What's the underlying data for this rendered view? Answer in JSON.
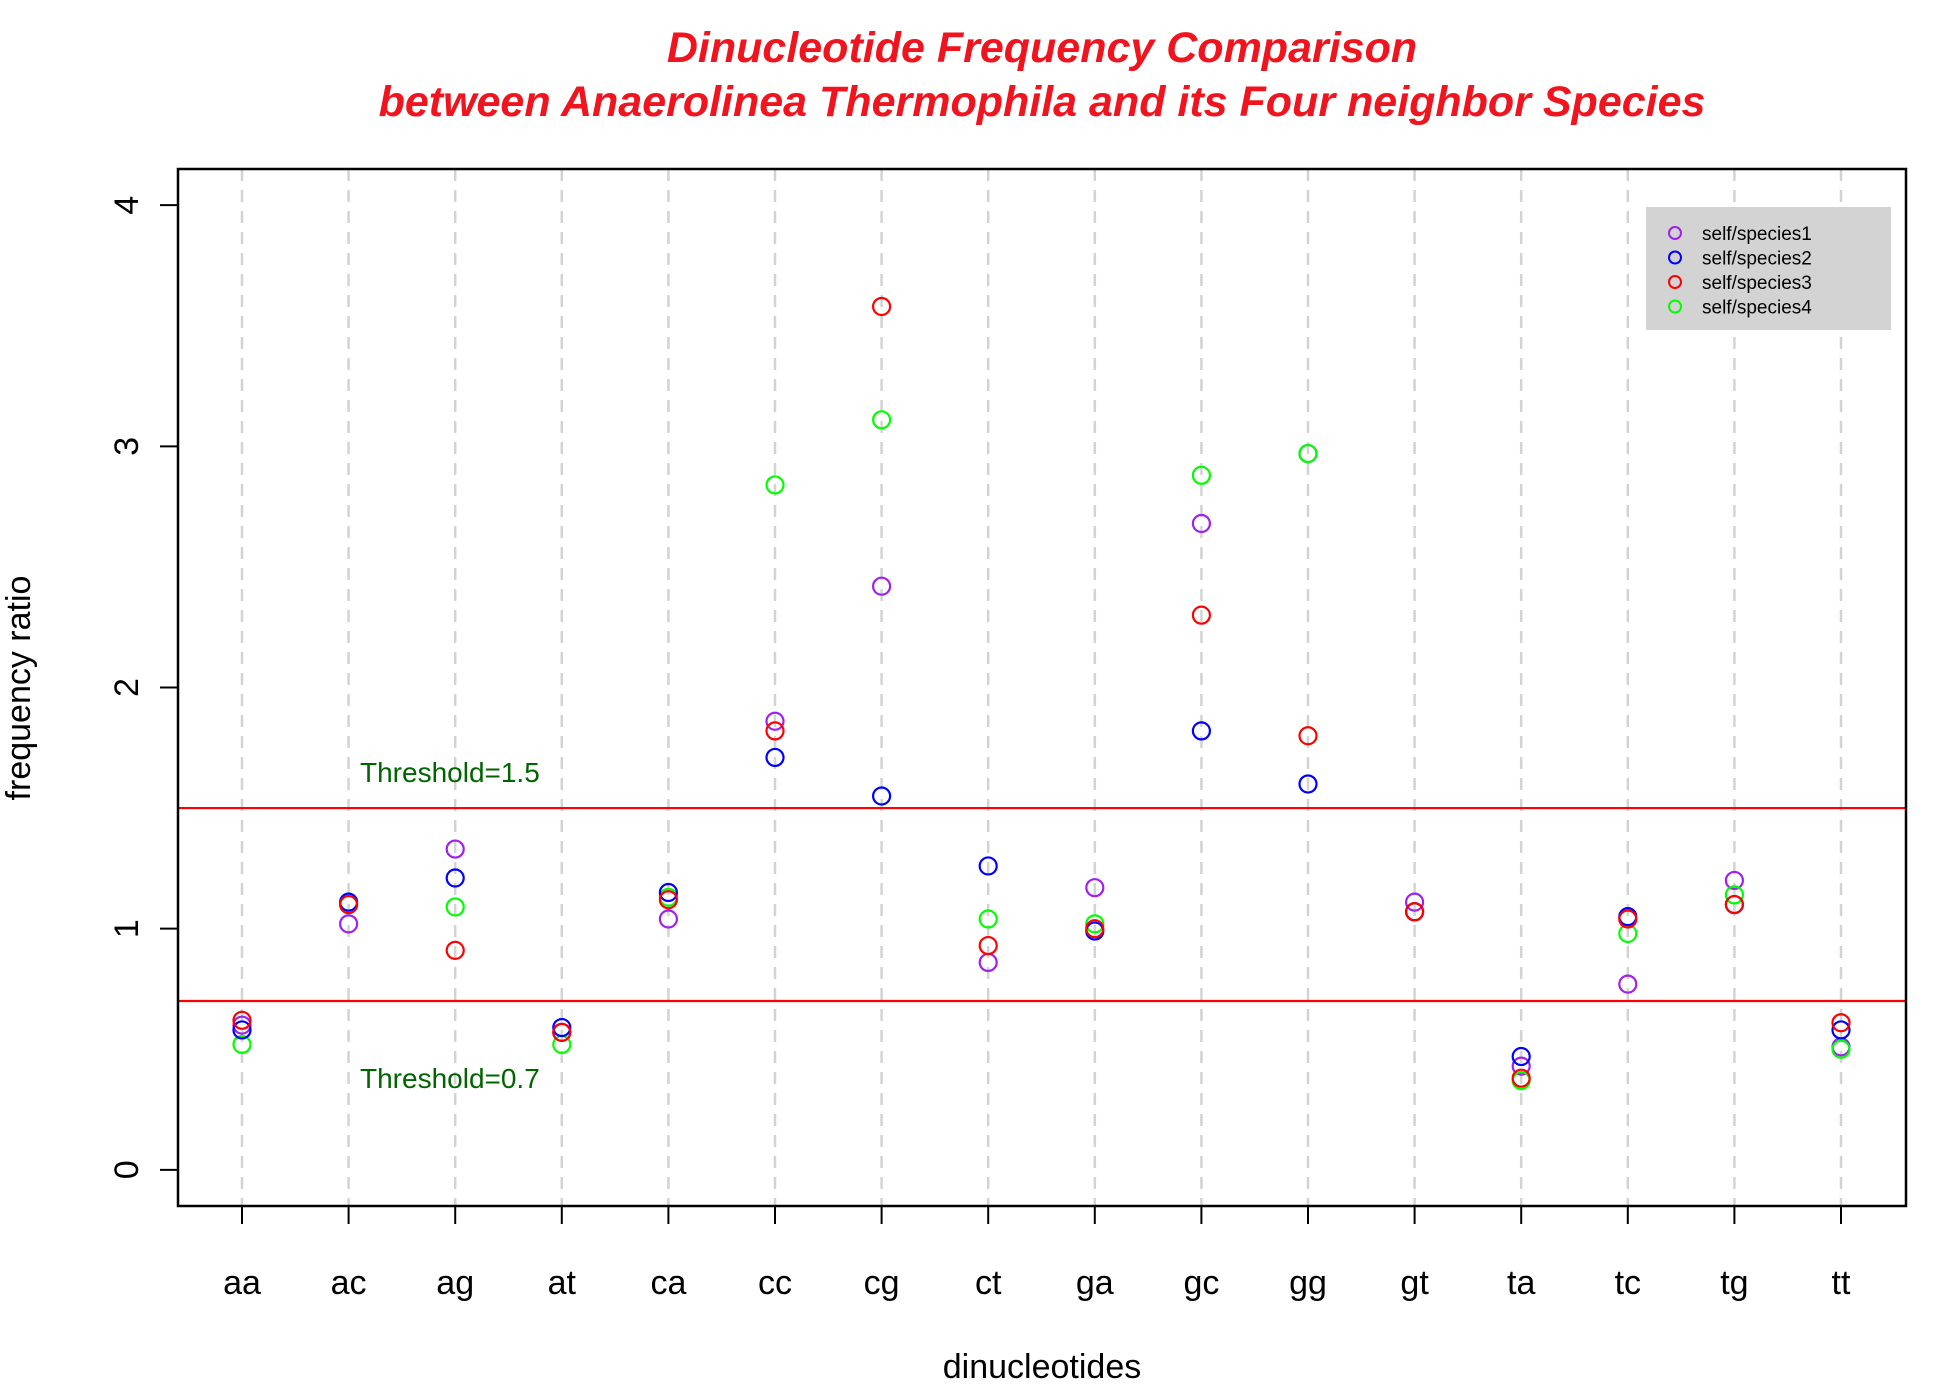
{
  "chart_data": {
    "type": "scatter",
    "title_lines": [
      "Dinucleotide Frequency Comparison",
      "between Anaerolinea Thermophila and its Four neighbor Species"
    ],
    "xlabel": "dinucleotides",
    "ylabel": "frequency ratio",
    "ylim": [
      -0.15,
      4.15
    ],
    "yticks": [
      0,
      1,
      2,
      3,
      4
    ],
    "ytick_labels": [
      "0",
      "1",
      "2",
      "3",
      "4"
    ],
    "categories": [
      "aa",
      "ac",
      "ag",
      "at",
      "ca",
      "cc",
      "cg",
      "ct",
      "ga",
      "gc",
      "gg",
      "gt",
      "ta",
      "tc",
      "tg",
      "tt"
    ],
    "grid": "vertical dashed at each category",
    "marker": "open circle",
    "series": [
      {
        "name": "self/species1",
        "color": "#a020f0",
        "values": [
          0.6,
          1.02,
          1.33,
          0.57,
          1.04,
          1.86,
          2.42,
          0.86,
          1.17,
          2.68,
          2.97,
          1.11,
          0.43,
          0.77,
          1.2,
          0.51
        ]
      },
      {
        "name": "self/species2",
        "color": "#0000ff",
        "values": [
          0.58,
          1.11,
          1.21,
          0.59,
          1.15,
          1.71,
          1.55,
          1.26,
          0.99,
          1.82,
          1.6,
          1.07,
          0.47,
          1.05,
          1.1,
          0.58
        ]
      },
      {
        "name": "self/species3",
        "color": "#ff0000",
        "values": [
          0.62,
          1.1,
          0.91,
          0.57,
          1.12,
          1.82,
          3.58,
          0.93,
          1.0,
          2.3,
          1.8,
          1.07,
          0.38,
          1.04,
          1.1,
          0.61
        ]
      },
      {
        "name": "self/species4",
        "color": "#00ff00",
        "values": [
          0.52,
          1.1,
          1.09,
          0.52,
          1.13,
          2.84,
          3.11,
          1.04,
          1.02,
          2.88,
          2.97,
          1.07,
          0.37,
          0.98,
          1.14,
          0.5
        ]
      }
    ],
    "thresholds": [
      {
        "value": 1.5,
        "label": "Threshold=1.5",
        "color": "#ff0000"
      },
      {
        "value": 0.7,
        "label": "Threshold=0.7",
        "color": "#ff0000"
      }
    ],
    "threshold_label_color": "#006400",
    "legend_placement": "top-right",
    "legend_background": "#d3d3d3"
  }
}
